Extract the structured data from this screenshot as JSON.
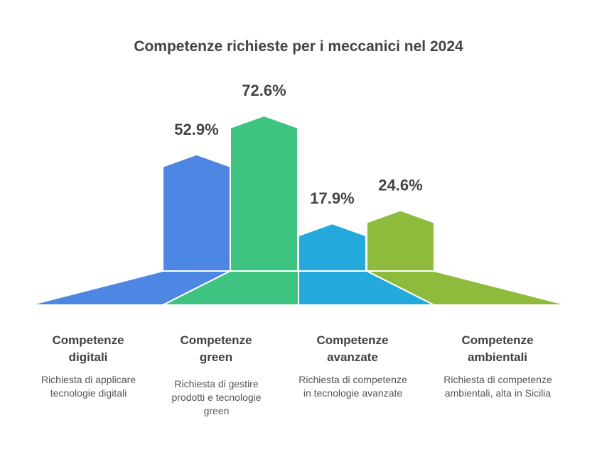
{
  "colors": {
    "digitali": "#4e86e4",
    "green": "#3ec480",
    "avanzate": "#24a9dd",
    "ambientali": "#8fbb3d"
  },
  "chart_data": {
    "type": "bar",
    "title": "Competenze richieste per i meccanici nel 2024",
    "categories": [
      "Competenze digitali",
      "Competenze green",
      "Competenze avanzate",
      "Competenze ambientali"
    ],
    "values": [
      52.9,
      72.6,
      17.9,
      24.6
    ],
    "value_labels": [
      "52.9%",
      "72.6%",
      "17.9%",
      "24.6%"
    ],
    "unit": "%"
  },
  "items": [
    {
      "name_line1": "Competenze",
      "name_line2": "digitali",
      "desc_line1": "Richiesta di applicare",
      "desc_line2": "tecnologie digitali",
      "desc_line3": ""
    },
    {
      "name_line1": "Competenze",
      "name_line2": "green",
      "desc_line1": "Richiesta di gestire",
      "desc_line2": "prodotti e tecnologie",
      "desc_line3": "green"
    },
    {
      "name_line1": "Competenze",
      "name_line2": "avanzate",
      "desc_line1": "Richiesta di competenze",
      "desc_line2": "in tecnologie avanzate",
      "desc_line3": ""
    },
    {
      "name_line1": "Competenze",
      "name_line2": "ambientali",
      "desc_line1": "Richiesta di competenze",
      "desc_line2": "ambientali, alta in Sicilia",
      "desc_line3": ""
    }
  ]
}
